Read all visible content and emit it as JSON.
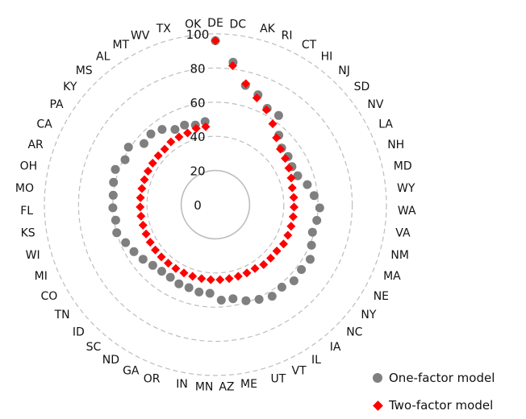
{
  "chart_data": {
    "type": "radar",
    "title": "",
    "categories": [
      "DE",
      "DC",
      "AK",
      "RI",
      "CT",
      "HI",
      "NJ",
      "SD",
      "NV",
      "LA",
      "NH",
      "MD",
      "WY",
      "WA",
      "VA",
      "NM",
      "MA",
      "NE",
      "NY",
      "NC",
      "IA",
      "IL",
      "VT",
      "UT",
      "ME",
      "AZ",
      "MN",
      "IN",
      "OR",
      "GA",
      "ND",
      "SC",
      "ID",
      "TN",
      "CO",
      "MI",
      "WI",
      "KS",
      "FL",
      "MO",
      "OH",
      "AR",
      "CA",
      "PA",
      "KY",
      "MS",
      "AL",
      "MT",
      "WV",
      "TX",
      "OK"
    ],
    "radial_ticks": [
      "0",
      "20",
      "40",
      "60",
      "80",
      "100"
    ],
    "rmin": 0,
    "rmax": 100,
    "grid": "dashed circles",
    "legend_position": "bottom-right",
    "series": [
      {
        "name": "One-factor model",
        "marker": "circle",
        "color": "#7f7f7f",
        "values": [
          96,
          84,
          72,
          69,
          64,
          64,
          55,
          51,
          51,
          50,
          51,
          55,
          58,
          61,
          60,
          59,
          61,
          64,
          63,
          64,
          62,
          63,
          61,
          59,
          56,
          56,
          52,
          52,
          51,
          51,
          50,
          50,
          51,
          53,
          55,
          57,
          60,
          59,
          60,
          60,
          61,
          62,
          59,
          61,
          55,
          56,
          54,
          50,
          50,
          48,
          49
        ]
      },
      {
        "name": "Two-factor model",
        "marker": "diamond",
        "color": "#ff0000",
        "values": [
          96,
          82,
          73,
          67,
          63,
          58,
          53,
          50,
          49,
          48,
          47,
          46,
          46,
          46,
          46,
          46,
          46,
          46,
          45,
          45,
          45,
          44,
          44,
          44,
          44,
          44,
          44,
          44,
          44,
          44,
          44,
          44,
          44,
          44,
          44,
          44,
          44,
          44,
          44,
          44,
          44,
          44,
          44,
          44,
          44,
          44,
          45,
          45,
          45,
          46,
          46
        ]
      }
    ]
  }
}
